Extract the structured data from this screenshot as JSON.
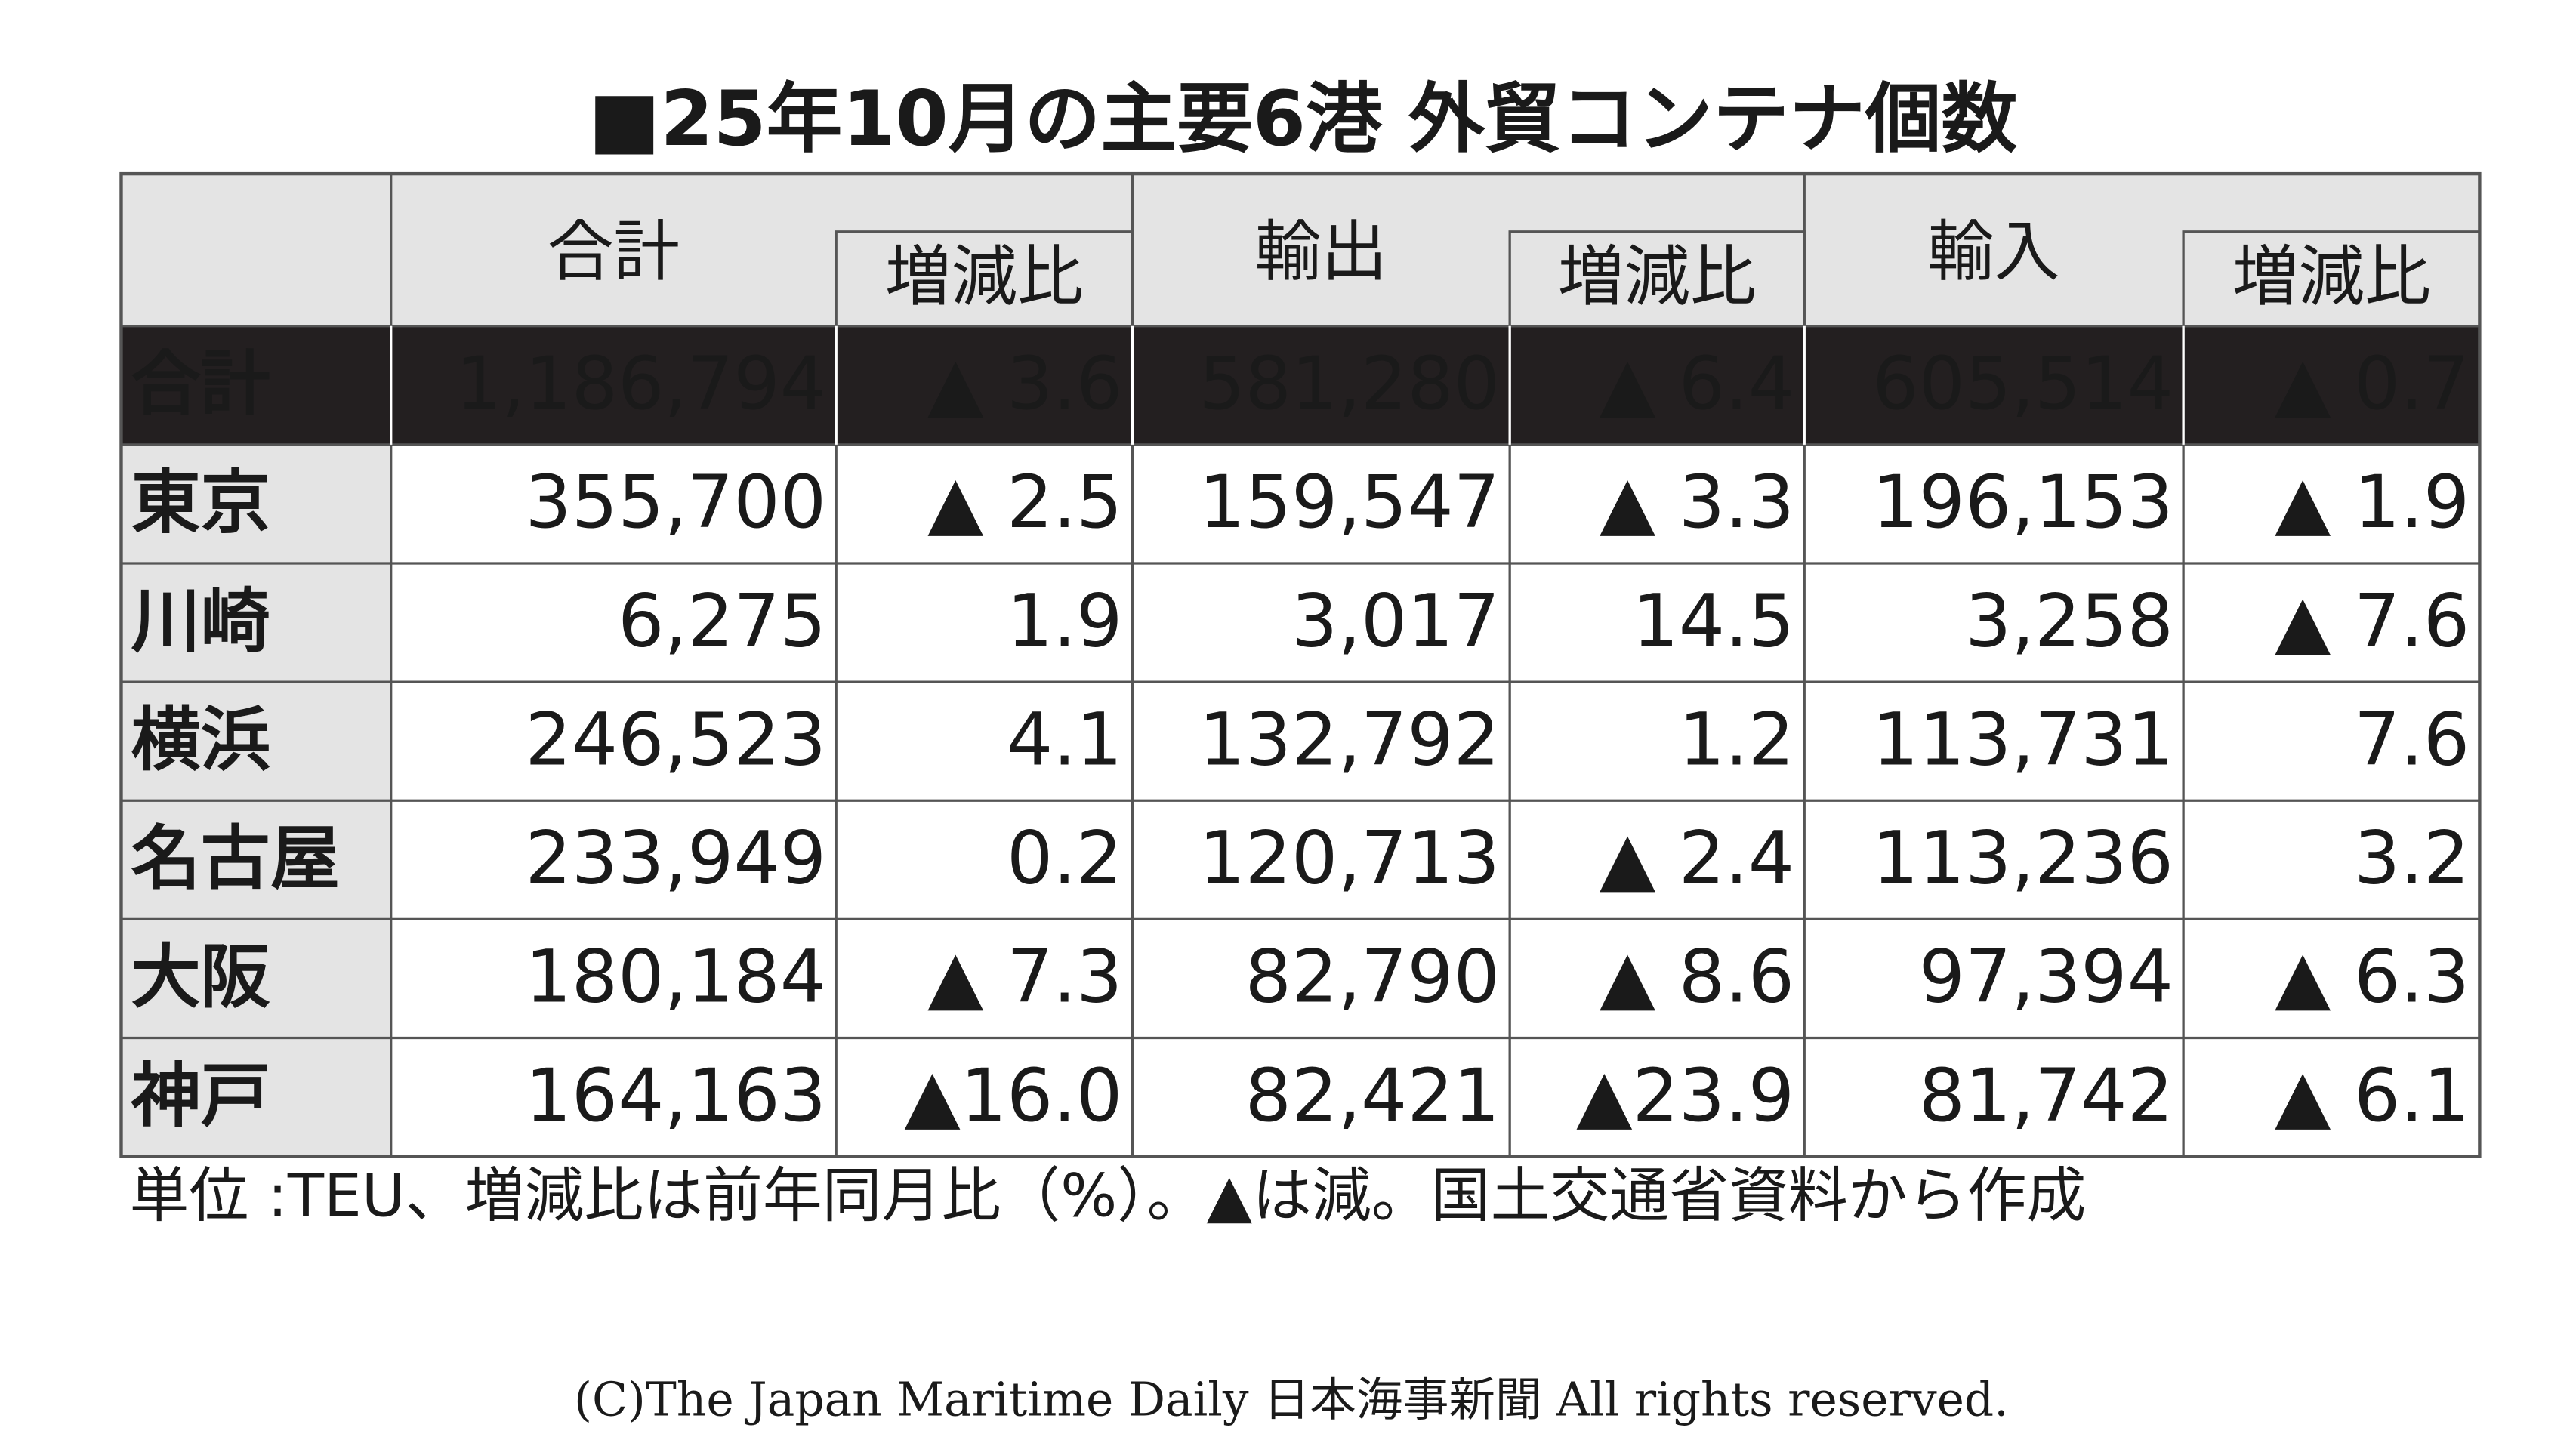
{
  "title": "■25年10月の主要6港 外貿コンテナ個数",
  "table": {
    "header": {
      "groups": [
        "合計",
        "輸出",
        "輸入"
      ],
      "change": [
        "増減比",
        "増減比",
        "増減比"
      ]
    },
    "rows": [
      [
        "合計",
        "1,186,794",
        "▲ 3.6",
        "581,280",
        "▲ 6.4",
        "605,514",
        "▲ 0.7"
      ],
      [
        "東京",
        "355,700",
        "▲ 2.5",
        "159,547",
        "▲ 3.3",
        "196,153",
        "▲ 1.9"
      ],
      [
        "川崎",
        "6,275",
        "1.9",
        "3,017",
        "14.5",
        "3,258",
        "▲ 7.6"
      ],
      [
        "横浜",
        "246,523",
        "4.1",
        "132,792",
        "1.2",
        "113,731",
        "7.6"
      ],
      [
        "名古屋",
        "233,949",
        "0.2",
        "120,713",
        "▲ 2.4",
        "113,236",
        "3.2"
      ],
      [
        "大阪",
        "180,184",
        "▲ 7.3",
        "82,790",
        "▲ 8.6",
        "97,394",
        "▲ 6.3"
      ],
      [
        "神戸",
        "164,163",
        "▲16.0",
        "82,421",
        "▲23.9",
        "81,742",
        "▲ 6.1"
      ]
    ]
  },
  "footnote": "単位 :TEU、増減比は前年同月比（%）。▲は減。国土交通省資料から作成",
  "copyright": "(C)The Japan Maritime Daily 日本海事新聞 All rights reserved."
}
